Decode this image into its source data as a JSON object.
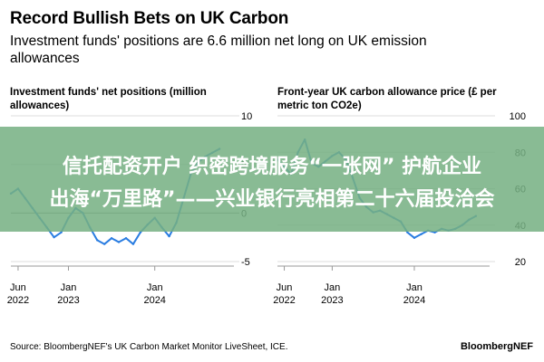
{
  "header": {
    "title": "Record Bullish Bets on UK Carbon",
    "subtitle": "Investment funds' positions are 6.6 million net long on UK emission allowances"
  },
  "footer": {
    "source": "Source: BloombergNEF's UK Carbon Market Monitor LiveSheet, ICE.",
    "brand": "BloombergNEF"
  },
  "overlay_banner": {
    "line1": "信托配资开户 织密跨境服务“一张网” 护航企业",
    "line2": "出海“万里路”——兴业银行亮相第二十六届投洽会",
    "color": "#76B082"
  },
  "chart_data": [
    {
      "type": "line",
      "title": "Investment funds' net positions (million allowances)",
      "color": "#2a7de1",
      "ylim": [
        -5,
        10
      ],
      "yticks": [
        "10",
        "5",
        "0",
        "-5"
      ],
      "xlim": [
        "2022-05",
        "2024-12"
      ],
      "xticks": [
        {
          "date": "2022-06",
          "label1": "Jun",
          "label2": "2022"
        },
        {
          "date": "2023-01",
          "label1": "Jan",
          "label2": "2023"
        },
        {
          "date": "2024-01",
          "label1": "Jan",
          "label2": "2024"
        }
      ],
      "series": [
        {
          "points": [
            [
              "2022-05",
              2.0
            ],
            [
              "2022-06",
              2.5
            ],
            [
              "2022-07",
              1.5
            ],
            [
              "2022-08",
              0.5
            ],
            [
              "2022-09",
              -0.5
            ],
            [
              "2022-10",
              -1.5
            ],
            [
              "2022-11",
              -2.5
            ],
            [
              "2022-12",
              -2.0
            ],
            [
              "2023-01",
              -0.5
            ],
            [
              "2023-02",
              0.5
            ],
            [
              "2023-03",
              0.0
            ],
            [
              "2023-04",
              -1.5
            ],
            [
              "2023-05",
              -2.8
            ],
            [
              "2023-06",
              -3.2
            ],
            [
              "2023-07",
              -2.6
            ],
            [
              "2023-08",
              -3.0
            ],
            [
              "2023-09",
              -2.6
            ],
            [
              "2023-10",
              -3.2
            ],
            [
              "2023-11",
              -2.0
            ],
            [
              "2023-12",
              -1.2
            ],
            [
              "2024-01",
              -0.5
            ],
            [
              "2024-02",
              -1.5
            ],
            [
              "2024-03",
              -2.4
            ],
            [
              "2024-04",
              -1.0
            ],
            [
              "2024-05",
              1.5
            ],
            [
              "2024-06",
              4.0
            ],
            [
              "2024-07",
              5.2
            ],
            [
              "2024-08",
              5.8
            ],
            [
              "2024-09",
              6.2
            ],
            [
              "2024-10",
              6.6
            ]
          ]
        }
      ]
    },
    {
      "type": "line",
      "title": "Front-year UK carbon allowance price (£ per metric ton CO2e)",
      "color": "#2a7de1",
      "ylim": [
        20,
        100
      ],
      "yticks": [
        "100",
        "80",
        "60",
        "40",
        "20"
      ],
      "xlim": [
        "2022-05",
        "2024-12"
      ],
      "xticks": [
        {
          "date": "2022-06",
          "label1": "Jun",
          "label2": "2022"
        },
        {
          "date": "2023-01",
          "label1": "Jan",
          "label2": "2023"
        },
        {
          "date": "2024-01",
          "label1": "Jan",
          "label2": "2024"
        }
      ],
      "series": [
        {
          "points": [
            [
              "2022-05",
              76
            ],
            [
              "2022-06",
              72
            ],
            [
              "2022-07",
              68
            ],
            [
              "2022-08",
              80
            ],
            [
              "2022-09",
              87
            ],
            [
              "2022-10",
              74
            ],
            [
              "2022-11",
              72
            ],
            [
              "2022-12",
              75
            ],
            [
              "2023-01",
              78
            ],
            [
              "2023-02",
              80
            ],
            [
              "2023-03",
              76
            ],
            [
              "2023-04",
              66
            ],
            [
              "2023-05",
              55
            ],
            [
              "2023-06",
              50
            ],
            [
              "2023-07",
              47
            ],
            [
              "2023-08",
              48
            ],
            [
              "2023-09",
              46
            ],
            [
              "2023-10",
              44
            ],
            [
              "2023-11",
              42
            ],
            [
              "2023-12",
              36
            ],
            [
              "2024-01",
              33
            ],
            [
              "2024-02",
              35
            ],
            [
              "2024-03",
              37
            ],
            [
              "2024-04",
              36
            ],
            [
              "2024-05",
              38
            ],
            [
              "2024-06",
              37
            ],
            [
              "2024-07",
              38
            ],
            [
              "2024-08",
              40
            ],
            [
              "2024-09",
              43
            ],
            [
              "2024-10",
              45
            ]
          ]
        }
      ]
    }
  ]
}
